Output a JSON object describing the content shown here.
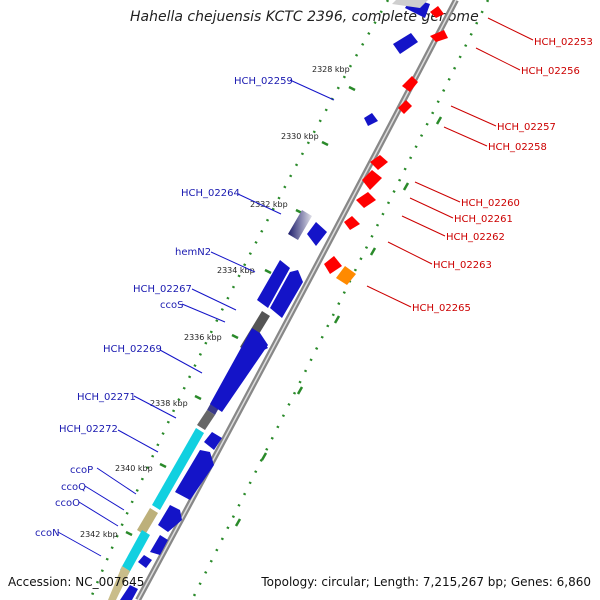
{
  "title": "Hahella chejuensis KCTC 2396, complete genome",
  "footer": {
    "accession": "Accession: NC_007645",
    "stats": "Topology: circular; Length: 7,215,267 bp; Genes: 6,860"
  },
  "colors": {
    "forward_gene": "#1414c8",
    "reverse_gene": "#ff0000",
    "pseudo_gene": "#ff8a00",
    "backbone": "#777777",
    "tick_major": "#2a8a2a",
    "tick_minor": "#3c9a3c",
    "label_forward": "#1a1ab0",
    "label_reverse": "#cc0000"
  },
  "ticks": [
    "2328 kbp",
    "2330 kbp",
    "2332 kbp",
    "2334 kbp",
    "2336 kbp",
    "2338 kbp",
    "2340 kbp",
    "2342 kbp"
  ],
  "labels_forward": [
    "HCH_02259",
    "HCH_02264",
    "hemN2",
    "HCH_02267",
    "ccoS",
    "HCH_02269",
    "HCH_02271",
    "HCH_02272",
    "ccoP",
    "ccoQ",
    "ccoO",
    "ccoN"
  ],
  "labels_reverse": [
    "HCH_02253",
    "HCH_02256",
    "HCH_02257",
    "HCH_02258",
    "HCH_02260",
    "HCH_02261",
    "HCH_02262",
    "HCH_02263",
    "HCH_02265"
  ]
}
